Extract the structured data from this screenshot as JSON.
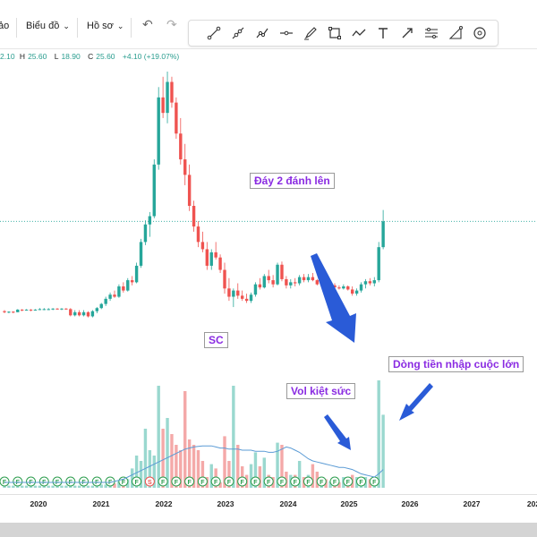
{
  "toolbar": {
    "cut_label": "ảo",
    "chart_menu_label": "Biểu đồ",
    "profile_menu_label": "Hồ sơ",
    "draw_tools": [
      "trend-line-icon",
      "ray-icon",
      "brush-icon",
      "horizontal-line-icon",
      "pen-icon",
      "rectangle-icon",
      "path-icon",
      "text-icon",
      "arrow-icon",
      "fib-icon",
      "measure-icon",
      "target-icon"
    ]
  },
  "ohlc": {
    "o": "2.10",
    "h_key": "H",
    "h": "25.60",
    "l_key": "L",
    "l": "18.90",
    "c_key": "C",
    "c": "25.60",
    "change": "+4.10 (+19.07%)"
  },
  "annotations": {
    "double_bottom": "Đáy 2 đánh lên",
    "sc": "SC",
    "vol_exhausted": "Vol kiệt sức",
    "big_inflow": "Dòng tiền nhập cuộc lớn"
  },
  "x_axis": {
    "ticks": [
      "2020",
      "2021",
      "2022",
      "2023",
      "2024",
      "2025",
      "2026",
      "2027",
      "202"
    ]
  },
  "colors": {
    "up": "#26a69a",
    "down": "#ef5350",
    "vol_up": "#9ad8cf",
    "vol_down": "#f4a9a8",
    "ma": "#5b9bd5",
    "badge": "#2e9e4f",
    "annotation": "#8a2be2",
    "arrow": "#2a5bd7"
  },
  "chart_data": {
    "type": "candlestick",
    "candles": [
      [
        2.8,
        2.9,
        2.6,
        2.7
      ],
      [
        2.7,
        2.8,
        2.6,
        2.75
      ],
      [
        2.75,
        2.8,
        2.6,
        2.7
      ],
      [
        2.7,
        3.0,
        2.7,
        2.95
      ],
      [
        2.95,
        3.0,
        2.8,
        2.9
      ],
      [
        2.9,
        3.0,
        2.85,
        2.95
      ],
      [
        2.95,
        3.0,
        2.8,
        2.9
      ],
      [
        2.9,
        3.0,
        2.85,
        2.95
      ],
      [
        2.95,
        3.1,
        2.9,
        3.0
      ],
      [
        3.0,
        3.1,
        2.9,
        3.0
      ],
      [
        3.0,
        3.1,
        2.9,
        3.0
      ],
      [
        3.0,
        3.1,
        2.9,
        3.05
      ],
      [
        3.05,
        3.1,
        2.95,
        3.0
      ],
      [
        3.0,
        3.1,
        2.9,
        3.05
      ],
      [
        3.05,
        3.1,
        2.95,
        3.0
      ],
      [
        3.0,
        3.1,
        2.3,
        2.4
      ],
      [
        2.4,
        2.9,
        2.3,
        2.7
      ],
      [
        2.7,
        2.9,
        2.3,
        2.4
      ],
      [
        2.4,
        2.9,
        2.3,
        2.7
      ],
      [
        2.7,
        2.8,
        2.2,
        2.3
      ],
      [
        2.3,
        2.9,
        2.2,
        2.8
      ],
      [
        2.8,
        3.2,
        2.6,
        3.1
      ],
      [
        3.1,
        3.6,
        3.0,
        3.5
      ],
      [
        3.5,
        4.2,
        3.3,
        4.0
      ],
      [
        4.0,
        4.6,
        3.8,
        4.4
      ],
      [
        4.4,
        4.8,
        4.1,
        4.2
      ],
      [
        4.2,
        5.4,
        4.1,
        5.2
      ],
      [
        5.2,
        5.6,
        4.6,
        4.8
      ],
      [
        4.8,
        6.0,
        4.7,
        5.8
      ],
      [
        5.8,
        6.2,
        5.3,
        5.6
      ],
      [
        5.6,
        7.5,
        5.5,
        7.2
      ],
      [
        7.2,
        9.8,
        7.0,
        9.5
      ],
      [
        9.5,
        11.6,
        9.2,
        11.2
      ],
      [
        11.2,
        12.4,
        10.0,
        12.0
      ],
      [
        12.0,
        17.5,
        11.8,
        17.0
      ],
      [
        17.0,
        24.5,
        16.5,
        23.5
      ],
      [
        23.5,
        25.5,
        21.5,
        22.0
      ],
      [
        22.0,
        26.0,
        21.0,
        25.0
      ],
      [
        25.0,
        25.5,
        22.5,
        23.0
      ],
      [
        23.0,
        23.5,
        19.5,
        20.0
      ],
      [
        20.0,
        21.5,
        17.0,
        17.5
      ],
      [
        17.5,
        19.0,
        15.0,
        16.0
      ],
      [
        16.0,
        17.0,
        12.5,
        13.0
      ],
      [
        13.0,
        13.5,
        10.5,
        11.0
      ],
      [
        11.0,
        11.5,
        9.0,
        9.5
      ],
      [
        9.5,
        10.5,
        8.5,
        8.8
      ],
      [
        8.8,
        9.5,
        6.8,
        7.2
      ],
      [
        7.2,
        8.8,
        6.8,
        8.5
      ],
      [
        8.5,
        9.5,
        7.8,
        8.0
      ],
      [
        8.0,
        8.3,
        6.5,
        6.8
      ],
      [
        6.8,
        7.5,
        4.5,
        5.0
      ],
      [
        5.0,
        6.0,
        3.8,
        4.2
      ],
      [
        4.2,
        5.0,
        3.2,
        4.8
      ],
      [
        4.8,
        5.5,
        4.0,
        4.3
      ],
      [
        4.3,
        4.8,
        3.8,
        4.0
      ],
      [
        4.0,
        4.5,
        3.6,
        3.8
      ],
      [
        3.8,
        4.6,
        3.6,
        4.4
      ],
      [
        4.4,
        5.6,
        4.2,
        5.4
      ],
      [
        5.4,
        6.0,
        4.9,
        5.1
      ],
      [
        5.1,
        6.4,
        5.0,
        6.2
      ],
      [
        6.2,
        6.8,
        5.5,
        5.8
      ],
      [
        5.8,
        6.3,
        5.1,
        5.4
      ],
      [
        5.4,
        7.5,
        5.3,
        7.3
      ],
      [
        7.3,
        7.6,
        5.7,
        5.9
      ],
      [
        5.9,
        6.2,
        5.0,
        5.3
      ],
      [
        5.3,
        5.9,
        5.0,
        5.6
      ],
      [
        5.6,
        6.0,
        5.2,
        5.5
      ],
      [
        5.5,
        6.3,
        5.3,
        6.1
      ],
      [
        6.1,
        6.4,
        5.6,
        5.8
      ],
      [
        5.8,
        6.4,
        5.6,
        6.1
      ],
      [
        6.1,
        6.5,
        5.7,
        5.8
      ],
      [
        5.8,
        5.9,
        5.3,
        5.4
      ],
      [
        5.4,
        5.8,
        5.2,
        5.6
      ],
      [
        5.6,
        5.7,
        5.1,
        5.2
      ],
      [
        5.2,
        5.4,
        5.0,
        5.3
      ],
      [
        5.3,
        5.5,
        5.0,
        5.1
      ],
      [
        5.1,
        5.3,
        4.9,
        5.0
      ],
      [
        5.0,
        5.4,
        4.9,
        5.2
      ],
      [
        5.2,
        5.3,
        4.8,
        4.9
      ],
      [
        4.9,
        5.2,
        4.3,
        4.5
      ],
      [
        4.5,
        5.0,
        4.3,
        4.8
      ],
      [
        4.8,
        5.6,
        4.6,
        5.4
      ],
      [
        5.4,
        5.9,
        5.0,
        5.7
      ],
      [
        5.7,
        6.0,
        5.3,
        5.5
      ],
      [
        5.5,
        6.1,
        5.2,
        5.8
      ],
      [
        5.8,
        9.5,
        5.6,
        9.0
      ],
      [
        9.0,
        12.6,
        8.8,
        11.5
      ]
    ],
    "volume": [
      [
        0.02,
        1
      ],
      [
        0.02,
        1
      ],
      [
        0.02,
        1
      ],
      [
        0.02,
        1
      ],
      [
        0.02,
        1
      ],
      [
        0.02,
        1
      ],
      [
        0.02,
        1
      ],
      [
        0.02,
        1
      ],
      [
        0.02,
        1
      ],
      [
        0.02,
        1
      ],
      [
        0.02,
        1
      ],
      [
        0.02,
        1
      ],
      [
        0.02,
        1
      ],
      [
        0.02,
        1
      ],
      [
        0.02,
        1
      ],
      [
        0.02,
        1
      ],
      [
        0.02,
        1
      ],
      [
        0.02,
        1
      ],
      [
        0.02,
        1
      ],
      [
        0.02,
        1
      ],
      [
        0.02,
        1
      ],
      [
        0.03,
        1
      ],
      [
        0.03,
        1
      ],
      [
        0.03,
        1
      ],
      [
        0.04,
        1
      ],
      [
        0.04,
        0
      ],
      [
        0.06,
        1
      ],
      [
        0.05,
        0
      ],
      [
        0.08,
        1
      ],
      [
        0.18,
        1
      ],
      [
        0.3,
        1
      ],
      [
        0.25,
        1
      ],
      [
        0.55,
        1
      ],
      [
        0.35,
        1
      ],
      [
        0.3,
        1
      ],
      [
        0.95,
        1
      ],
      [
        0.55,
        0
      ],
      [
        0.65,
        1
      ],
      [
        0.5,
        0
      ],
      [
        0.4,
        0
      ],
      [
        0.35,
        0
      ],
      [
        0.9,
        0
      ],
      [
        0.45,
        0
      ],
      [
        0.4,
        0
      ],
      [
        0.35,
        0
      ],
      [
        0.25,
        0
      ],
      [
        0.1,
        0
      ],
      [
        0.22,
        1
      ],
      [
        0.18,
        0
      ],
      [
        0.05,
        0
      ],
      [
        0.48,
        0
      ],
      [
        0.25,
        0
      ],
      [
        0.95,
        1
      ],
      [
        0.4,
        0
      ],
      [
        0.2,
        0
      ],
      [
        0.12,
        0
      ],
      [
        0.22,
        1
      ],
      [
        0.33,
        1
      ],
      [
        0.2,
        0
      ],
      [
        0.28,
        1
      ],
      [
        0.12,
        0
      ],
      [
        0.1,
        0
      ],
      [
        0.42,
        1
      ],
      [
        0.4,
        0
      ],
      [
        0.15,
        0
      ],
      [
        0.12,
        1
      ],
      [
        0.12,
        0
      ],
      [
        0.25,
        1
      ],
      [
        0.1,
        0
      ],
      [
        0.12,
        1
      ],
      [
        0.22,
        0
      ],
      [
        0.15,
        0
      ],
      [
        0.1,
        1
      ],
      [
        0.08,
        0
      ],
      [
        0.06,
        1
      ],
      [
        0.05,
        0
      ],
      [
        0.05,
        0
      ],
      [
        0.1,
        1
      ],
      [
        0.08,
        0
      ],
      [
        0.12,
        0
      ],
      [
        0.1,
        1
      ],
      [
        0.09,
        1
      ],
      [
        0.1,
        1
      ],
      [
        0.08,
        0
      ],
      [
        0.1,
        1
      ],
      [
        1.0,
        1
      ],
      [
        0.68,
        1
      ]
    ],
    "volume_ma": [
      0.05,
      0.05,
      0.05,
      0.05,
      0.05,
      0.05,
      0.05,
      0.05,
      0.05,
      0.05,
      0.05,
      0.05,
      0.05,
      0.05,
      0.05,
      0.05,
      0.05,
      0.05,
      0.05,
      0.05,
      0.05,
      0.05,
      0.05,
      0.05,
      0.05,
      0.06,
      0.07,
      0.08,
      0.1,
      0.12,
      0.14,
      0.16,
      0.18,
      0.2,
      0.22,
      0.24,
      0.26,
      0.28,
      0.3,
      0.32,
      0.34,
      0.36,
      0.37,
      0.38,
      0.385,
      0.39,
      0.39,
      0.39,
      0.38,
      0.37,
      0.37,
      0.36,
      0.36,
      0.36,
      0.35,
      0.35,
      0.35,
      0.34,
      0.34,
      0.34,
      0.33,
      0.33,
      0.34,
      0.36,
      0.38,
      0.37,
      0.35,
      0.33,
      0.3,
      0.27,
      0.25,
      0.24,
      0.23,
      0.22,
      0.21,
      0.2,
      0.19,
      0.19,
      0.18,
      0.17,
      0.15,
      0.13,
      0.12,
      0.11,
      0.1,
      0.13,
      0.17
    ],
    "badge_letter": "F",
    "badge_special": {
      "index": 33,
      "letter": "S"
    },
    "current_price_line": 11.5
  }
}
